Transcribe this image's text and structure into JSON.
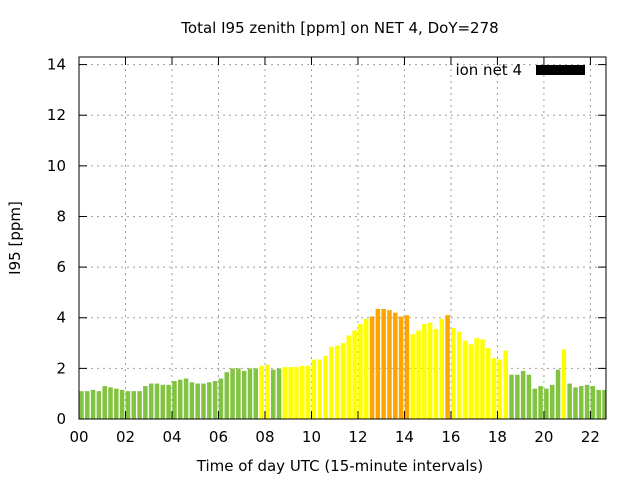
{
  "chart_data": {
    "type": "bar",
    "title": "Total I95 zenith [ppm] on NET 4, DoY=278",
    "xlabel": "Time of day UTC (15-minute intervals)",
    "ylabel": "I95 [ppm]",
    "xlim": [
      0,
      22.67
    ],
    "ylim": [
      0,
      14.3
    ],
    "grid": true,
    "legend": {
      "label": "ion net 4",
      "placement": "top-right"
    },
    "xticks": [
      "00",
      "02",
      "04",
      "06",
      "08",
      "10",
      "12",
      "14",
      "16",
      "18",
      "20",
      "22"
    ],
    "yticks": [
      "0",
      "2",
      "4",
      "6",
      "8",
      "10",
      "12",
      "14"
    ],
    "interval_hours": 0.25,
    "colors": {
      "low": "#82c341",
      "mid": "#ffff00",
      "high": "#ffa500",
      "legend": "#000000"
    },
    "thresholds": [
      2.0,
      4.0
    ],
    "values": [
      1.1,
      1.1,
      1.15,
      1.1,
      1.3,
      1.25,
      1.2,
      1.15,
      1.1,
      1.1,
      1.1,
      1.3,
      1.4,
      1.4,
      1.35,
      1.35,
      1.5,
      1.55,
      1.6,
      1.45,
      1.4,
      1.4,
      1.45,
      1.5,
      1.6,
      1.85,
      2.0,
      2.0,
      1.9,
      2.0,
      2.0,
      2.1,
      2.15,
      1.95,
      2.0,
      2.05,
      2.05,
      2.05,
      2.1,
      2.1,
      2.35,
      2.35,
      2.5,
      2.85,
      2.9,
      3.0,
      3.3,
      3.5,
      3.75,
      3.95,
      4.05,
      4.35,
      4.35,
      4.3,
      4.2,
      4.05,
      4.1,
      3.35,
      3.5,
      3.75,
      3.8,
      3.55,
      3.95,
      4.1,
      3.6,
      3.45,
      3.1,
      2.95,
      3.2,
      3.15,
      2.8,
      2.4,
      2.35,
      2.7,
      1.75,
      1.75,
      1.9,
      1.75,
      1.2,
      1.3,
      1.2,
      1.35,
      1.95,
      2.75,
      1.4,
      1.25,
      1.3,
      1.35,
      1.3,
      1.15,
      1.15,
      1.75
    ]
  }
}
